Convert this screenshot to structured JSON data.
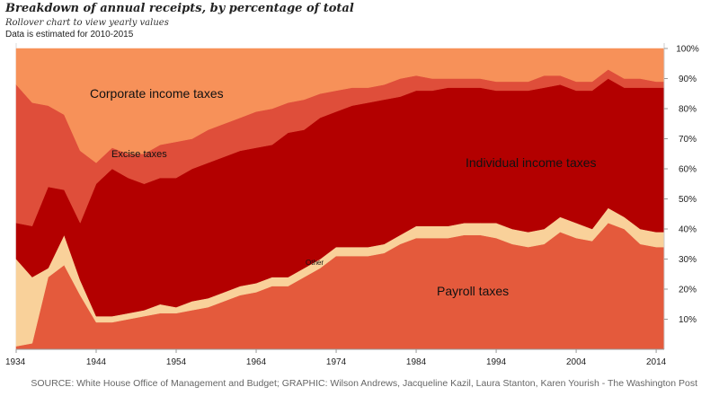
{
  "header": {
    "title": "Breakdown of annual receipts, by percentage of total",
    "subtitle": "Rollover chart to view yearly values",
    "note": "Data is estimated for 2010-2015"
  },
  "footer": {
    "source": "SOURCE: White House Office of Management and Budget; GRAPHIC: Wilson Andrews, Jacqueline Kazil, Laura Stanton, Karen Yourish - The Washington Post"
  },
  "chart_data": {
    "type": "area",
    "stacked": true,
    "normalized": true,
    "x": [
      1934,
      1936,
      1938,
      1940,
      1942,
      1944,
      1946,
      1948,
      1950,
      1952,
      1954,
      1956,
      1958,
      1960,
      1962,
      1964,
      1966,
      1968,
      1970,
      1972,
      1974,
      1976,
      1978,
      1980,
      1982,
      1984,
      1986,
      1988,
      1990,
      1992,
      1994,
      1996,
      1998,
      2000,
      2002,
      2004,
      2006,
      2008,
      2010,
      2012,
      2014,
      2015
    ],
    "xlim": [
      1934,
      2015
    ],
    "xticks": [
      "1934",
      "1944",
      "1954",
      "1964",
      "1974",
      "1984",
      "1994",
      "2004",
      "2014"
    ],
    "xtick_values": [
      1934,
      1944,
      1954,
      1964,
      1974,
      1984,
      1994,
      2004,
      2014
    ],
    "ylim": [
      0,
      100
    ],
    "yticks": [
      "10%",
      "20%",
      "30%",
      "40%",
      "50%",
      "60%",
      "70%",
      "80%",
      "90%",
      "100%"
    ],
    "ytick_values": [
      10,
      20,
      30,
      40,
      50,
      60,
      70,
      80,
      90,
      100
    ],
    "series": [
      {
        "name": "Payroll taxes",
        "color": "#e45a3c",
        "values": [
          1,
          2,
          24,
          28,
          18,
          9,
          9,
          10,
          11,
          12,
          12,
          13,
          14,
          16,
          18,
          19,
          21,
          21,
          24,
          27,
          31,
          31,
          31,
          32,
          35,
          37,
          37,
          37,
          38,
          38,
          37,
          35,
          34,
          35,
          39,
          37,
          36,
          42,
          40,
          35,
          34,
          34
        ]
      },
      {
        "name": "Other",
        "color": "#f9d19a",
        "values": [
          29,
          22,
          3,
          10,
          5,
          2,
          2,
          2,
          2,
          3,
          2,
          3,
          3,
          3,
          3,
          3,
          3,
          3,
          3,
          3,
          3,
          3,
          3,
          3,
          3,
          4,
          4,
          4,
          4,
          4,
          5,
          5,
          5,
          5,
          5,
          5,
          4,
          5,
          4,
          5,
          5,
          5
        ]
      },
      {
        "name": "Individual income taxes",
        "color": "#b30000",
        "values": [
          12,
          17,
          27,
          15,
          19,
          44,
          49,
          45,
          42,
          42,
          43,
          44,
          45,
          45,
          45,
          45,
          44,
          48,
          46,
          47,
          45,
          47,
          48,
          48,
          46,
          45,
          45,
          46,
          45,
          45,
          44,
          46,
          47,
          47,
          44,
          44,
          46,
          43,
          43,
          47,
          48,
          48
        ]
      },
      {
        "name": "Excise taxes",
        "color": "#df4e3a",
        "values": [
          46,
          41,
          27,
          25,
          24,
          7,
          7,
          8,
          10,
          11,
          12,
          10,
          11,
          11,
          11,
          12,
          12,
          10,
          10,
          8,
          7,
          6,
          5,
          5,
          6,
          5,
          4,
          3,
          3,
          3,
          3,
          3,
          3,
          4,
          3,
          3,
          3,
          3,
          3,
          3,
          2,
          2
        ]
      },
      {
        "name": "Corporate income taxes",
        "color": "#f79159",
        "values": [
          12,
          18,
          19,
          22,
          34,
          38,
          33,
          35,
          35,
          32,
          31,
          30,
          27,
          25,
          23,
          21,
          20,
          18,
          17,
          15,
          14,
          13,
          13,
          12,
          10,
          9,
          10,
          10,
          10,
          10,
          11,
          11,
          11,
          9,
          9,
          11,
          11,
          7,
          10,
          10,
          11,
          11
        ]
      }
    ],
    "area_labels": [
      "Corporate income taxes",
      "Excise taxes",
      "Individual income taxes",
      "Other",
      "Payroll taxes"
    ],
    "grid": false
  }
}
